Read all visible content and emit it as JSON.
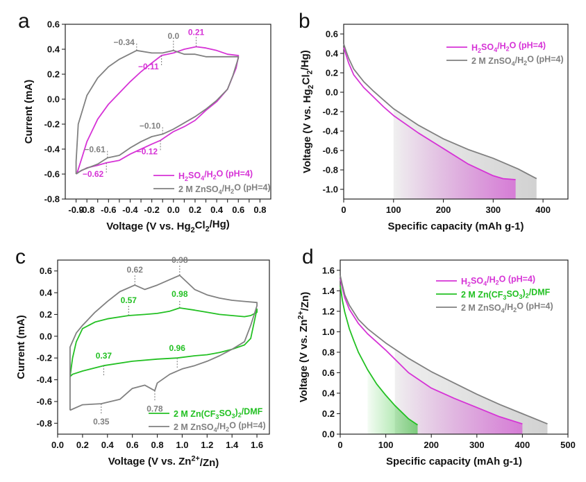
{
  "chart_data": [
    {
      "panel": "a",
      "type": "line",
      "xlabel": "Voltage (V vs. Hg2Cl2/Hg)",
      "ylabel": "Current (mA)",
      "xlim": [
        -1.0,
        0.9
      ],
      "ylim": [
        -0.8,
        0.6
      ],
      "xticks": [
        -0.9,
        -0.8,
        -0.7,
        -0.6,
        -0.5,
        -0.4,
        -0.3,
        -0.2,
        -0.1,
        0.0,
        0.1,
        0.2,
        0.3,
        0.4,
        0.5,
        0.6,
        0.7,
        0.8
      ],
      "xtick_labels": [
        "-0.9",
        "-0.8",
        "-0.6",
        "-0.4",
        "-0.2",
        "0.0",
        "0.2",
        "0.4",
        "0.6",
        "0.8"
      ],
      "yticks": [
        -0.8,
        -0.6,
        -0.4,
        -0.2,
        0.0,
        0.2,
        0.4,
        0.6
      ],
      "grid": false,
      "legend": "bottom-right",
      "series": [
        {
          "name": "H2SO4/H2O (pH=4)",
          "color": "#d633d6",
          "x": [
            -0.89,
            -0.85,
            -0.8,
            -0.7,
            -0.6,
            -0.5,
            -0.4,
            -0.3,
            -0.2,
            -0.11,
            0.0,
            0.1,
            0.21,
            0.3,
            0.4,
            0.5,
            0.6,
            0.6,
            0.58,
            0.5,
            0.4,
            0.3,
            0.2,
            0.1,
            0.0,
            -0.12,
            -0.2,
            -0.3,
            -0.4,
            -0.5,
            -0.62,
            -0.7,
            -0.8,
            -0.89
          ],
          "y": [
            -0.59,
            -0.48,
            -0.34,
            -0.16,
            -0.04,
            0.05,
            0.14,
            0.22,
            0.29,
            0.35,
            0.37,
            0.4,
            0.42,
            0.41,
            0.39,
            0.36,
            0.35,
            0.34,
            0.25,
            0.08,
            -0.02,
            -0.09,
            -0.17,
            -0.22,
            -0.26,
            -0.33,
            -0.36,
            -0.4,
            -0.44,
            -0.49,
            -0.51,
            -0.53,
            -0.55,
            -0.59
          ]
        },
        {
          "name": "2 M ZnSO4/H2O (pH=4)",
          "color": "#808080",
          "x": [
            -0.9,
            -0.9,
            -0.88,
            -0.8,
            -0.7,
            -0.6,
            -0.5,
            -0.34,
            -0.2,
            -0.1,
            0.0,
            0.1,
            0.2,
            0.3,
            0.4,
            0.5,
            0.6,
            0.6,
            0.55,
            0.5,
            0.4,
            0.3,
            0.2,
            0.1,
            0.0,
            -0.1,
            -0.2,
            -0.3,
            -0.4,
            -0.5,
            -0.61,
            -0.7,
            -0.85,
            -0.9
          ],
          "y": [
            -0.6,
            -0.5,
            -0.2,
            0.03,
            0.17,
            0.26,
            0.32,
            0.39,
            0.37,
            0.37,
            0.39,
            0.36,
            0.36,
            0.34,
            0.34,
            0.34,
            0.34,
            0.33,
            0.19,
            0.08,
            -0.01,
            -0.08,
            -0.14,
            -0.19,
            -0.24,
            -0.28,
            -0.3,
            -0.34,
            -0.39,
            -0.45,
            -0.47,
            -0.52,
            -0.57,
            -0.6
          ]
        }
      ],
      "annotations": [
        {
          "text": "0.21",
          "x": 0.21,
          "y": 0.42,
          "color": "#d633d6"
        },
        {
          "text": "0.0",
          "x": 0.0,
          "y": 0.39,
          "color": "#808080"
        },
        {
          "text": "−0.34",
          "x": -0.34,
          "y": 0.39,
          "color": "#808080"
        },
        {
          "text": "−0.11",
          "x": -0.11,
          "y": 0.35,
          "color": "#d633d6"
        },
        {
          "text": "−0.10",
          "x": -0.1,
          "y": -0.28,
          "color": "#808080"
        },
        {
          "text": "−0.12",
          "x": -0.12,
          "y": -0.33,
          "color": "#d633d6"
        },
        {
          "text": "−0.61",
          "x": -0.61,
          "y": -0.47,
          "color": "#808080"
        },
        {
          "text": "−0.62",
          "x": -0.62,
          "y": -0.51,
          "color": "#d633d6"
        }
      ]
    },
    {
      "panel": "b",
      "type": "line",
      "xlabel": "Specific capacity (mAh g-1)",
      "ylabel": "Voltage (V vs. Hg2Cl2/Hg)",
      "xlim": [
        0,
        450
      ],
      "ylim": [
        -1.1,
        0.7
      ],
      "xticks": [
        0,
        100,
        200,
        300,
        400
      ],
      "yticks": [
        -1.0,
        -0.8,
        -0.6,
        -0.4,
        -0.2,
        0.0,
        0.2,
        0.4,
        0.6
      ],
      "grid": false,
      "legend": "top-right",
      "series": [
        {
          "name": "H2SO4/H2O (pH=4)",
          "color": "#d633d6",
          "x": [
            0,
            5,
            10,
            20,
            40,
            60,
            80,
            100,
            150,
            200,
            250,
            300,
            320,
            345
          ],
          "y": [
            0.46,
            0.38,
            0.3,
            0.18,
            0.05,
            -0.05,
            -0.15,
            -0.24,
            -0.42,
            -0.58,
            -0.74,
            -0.86,
            -0.89,
            -0.9
          ]
        },
        {
          "name": "2 M ZnSO4/H2O (pH=4)",
          "color": "#808080",
          "x": [
            0,
            5,
            10,
            20,
            40,
            60,
            80,
            100,
            150,
            200,
            250,
            300,
            350,
            387
          ],
          "y": [
            0.5,
            0.42,
            0.35,
            0.24,
            0.11,
            0.01,
            -0.08,
            -0.17,
            -0.34,
            -0.48,
            -0.59,
            -0.68,
            -0.79,
            -0.89
          ]
        }
      ]
    },
    {
      "panel": "c",
      "type": "line",
      "xlabel": "Voltage (V vs. Zn2+/Zn)",
      "ylabel": "Current (mA)",
      "xlim": [
        0.0,
        1.7
      ],
      "ylim": [
        -0.9,
        0.7
      ],
      "xticks": [
        0.0,
        0.2,
        0.4,
        0.6,
        0.8,
        1.0,
        1.2,
        1.4,
        1.6
      ],
      "yticks": [
        -0.8,
        -0.6,
        -0.4,
        -0.2,
        0.0,
        0.2,
        0.4,
        0.6
      ],
      "grid": false,
      "legend": "bottom-right",
      "series": [
        {
          "name": "2 M Zn(CF3SO3)2/DMF",
          "color": "#22c022",
          "x": [
            0.1,
            0.12,
            0.15,
            0.2,
            0.3,
            0.4,
            0.57,
            0.7,
            0.8,
            0.9,
            0.98,
            1.1,
            1.2,
            1.3,
            1.4,
            1.5,
            1.55,
            1.6,
            1.6,
            1.55,
            1.5,
            1.4,
            1.3,
            1.2,
            1.1,
            0.96,
            0.8,
            0.6,
            0.37,
            0.2,
            0.12,
            0.1
          ],
          "y": [
            -0.37,
            -0.2,
            -0.05,
            0.07,
            0.13,
            0.16,
            0.19,
            0.2,
            0.21,
            0.23,
            0.26,
            0.24,
            0.22,
            0.2,
            0.19,
            0.18,
            0.19,
            0.22,
            0.25,
            -0.02,
            -0.08,
            -0.12,
            -0.15,
            -0.17,
            -0.18,
            -0.2,
            -0.21,
            -0.23,
            -0.27,
            -0.32,
            -0.35,
            -0.37
          ]
        },
        {
          "name": "2 M ZnSO4/H2O (pH=4)",
          "color": "#808080",
          "x": [
            0.1,
            0.1,
            0.15,
            0.2,
            0.3,
            0.4,
            0.5,
            0.62,
            0.7,
            0.8,
            0.9,
            0.98,
            1.1,
            1.2,
            1.3,
            1.4,
            1.5,
            1.6,
            1.6,
            1.55,
            1.5,
            1.4,
            1.3,
            1.2,
            1.1,
            1.0,
            0.9,
            0.8,
            0.78,
            0.7,
            0.6,
            0.5,
            0.35,
            0.2,
            0.1
          ],
          "y": [
            -0.68,
            -0.1,
            0.03,
            0.1,
            0.22,
            0.32,
            0.41,
            0.47,
            0.43,
            0.47,
            0.52,
            0.56,
            0.43,
            0.38,
            0.35,
            0.33,
            0.32,
            0.31,
            0.28,
            0.1,
            -0.05,
            -0.12,
            -0.18,
            -0.23,
            -0.27,
            -0.3,
            -0.35,
            -0.43,
            -0.5,
            -0.45,
            -0.48,
            -0.58,
            -0.62,
            -0.63,
            -0.68
          ]
        }
      ],
      "annotations": [
        {
          "text": "0.62",
          "x": 0.62,
          "y": 0.47,
          "color": "#808080"
        },
        {
          "text": "0.98",
          "x": 0.98,
          "y": 0.56,
          "color": "#808080"
        },
        {
          "text": "0.57",
          "x": 0.57,
          "y": 0.19,
          "color": "#22c022"
        },
        {
          "text": "0.98",
          "x": 0.98,
          "y": 0.26,
          "color": "#22c022"
        },
        {
          "text": "0.37",
          "x": 0.37,
          "y": -0.27,
          "color": "#22c022"
        },
        {
          "text": "0.96",
          "x": 0.96,
          "y": -0.2,
          "color": "#22c022"
        },
        {
          "text": "0.78",
          "x": 0.78,
          "y": -0.5,
          "color": "#808080"
        },
        {
          "text": "0.35",
          "x": 0.35,
          "y": -0.62,
          "color": "#808080"
        }
      ]
    },
    {
      "panel": "d",
      "type": "line",
      "xlabel": "Specific capacity (mAh g-1)",
      "ylabel": "Voltage (V vs. Zn2+/Zn)",
      "xlim": [
        0,
        500
      ],
      "ylim": [
        0.0,
        1.7
      ],
      "xticks": [
        0,
        100,
        200,
        300,
        400,
        500
      ],
      "yticks": [
        0.0,
        0.2,
        0.4,
        0.6,
        0.8,
        1.0,
        1.2,
        1.4,
        1.6
      ],
      "grid": false,
      "legend": "top-right",
      "series": [
        {
          "name": "H2SO4/H2O (pH=4)",
          "color": "#d633d6",
          "x": [
            0,
            5,
            10,
            20,
            40,
            60,
            80,
            100,
            150,
            200,
            250,
            300,
            350,
            400
          ],
          "y": [
            1.52,
            1.42,
            1.33,
            1.22,
            1.08,
            0.98,
            0.9,
            0.82,
            0.6,
            0.45,
            0.35,
            0.26,
            0.17,
            0.1
          ]
        },
        {
          "name": "2 M Zn(CF3SO3)2/DMF",
          "color": "#22c022",
          "x": [
            0,
            5,
            10,
            20,
            30,
            40,
            60,
            80,
            100,
            120,
            150,
            170
          ],
          "y": [
            1.45,
            1.3,
            1.19,
            1.03,
            0.91,
            0.8,
            0.63,
            0.49,
            0.38,
            0.28,
            0.15,
            0.09
          ]
        },
        {
          "name": "2 M ZnSO4/H2O (pH=4)",
          "color": "#808080",
          "x": [
            0,
            5,
            10,
            20,
            40,
            60,
            80,
            100,
            150,
            200,
            250,
            300,
            350,
            400,
            455
          ],
          "y": [
            1.55,
            1.45,
            1.36,
            1.26,
            1.12,
            1.03,
            0.96,
            0.89,
            0.74,
            0.61,
            0.5,
            0.39,
            0.29,
            0.2,
            0.1
          ]
        }
      ]
    }
  ]
}
